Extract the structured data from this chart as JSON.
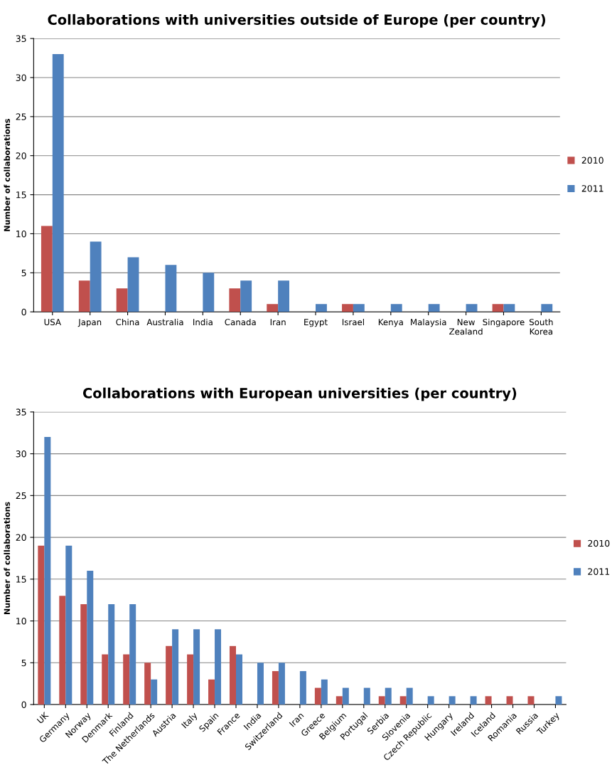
{
  "chart_data": [
    {
      "type": "bar",
      "title": "Collaborations with universities outside of Europe (per country)",
      "ylabel": "Number of collaborations",
      "categories": [
        "USA",
        "Japan",
        "China",
        "Australia",
        "India",
        "Canada",
        "Iran",
        "Egypt",
        "Israel",
        "Kenya",
        "Malaysia",
        "New\nZealand",
        "Singapore",
        "South\nKorea"
      ],
      "series": [
        {
          "name": "2010",
          "color": "#c0504d",
          "values": [
            11,
            4,
            3,
            0,
            0,
            3,
            1,
            0,
            1,
            0,
            0,
            0,
            1,
            0
          ]
        },
        {
          "name": "2011",
          "color": "#4f81bd",
          "values": [
            33,
            9,
            7,
            6,
            5,
            4,
            4,
            1,
            1,
            1,
            1,
            1,
            1,
            1
          ]
        }
      ],
      "ylim": [
        0,
        35
      ],
      "yticks": [
        0,
        5,
        10,
        15,
        20,
        25,
        30,
        35
      ],
      "grid": "y",
      "legend": "right"
    },
    {
      "type": "bar",
      "title": "Collaborations with European universities (per country)",
      "ylabel": "Number of collaborations",
      "categories": [
        "UK",
        "Germany",
        "Norway",
        "Denmark",
        "Finland",
        "The Netherlands",
        "Austria",
        "Italy",
        "Spain",
        "France",
        "India",
        "Switzerland",
        "Iran",
        "Greece",
        "Belgium",
        "Portugal",
        "Serbia",
        "Slovenia",
        "Czech Republic",
        "Hungary",
        "Ireland",
        "Iceland",
        "Romania",
        "Russia",
        "Turkey"
      ],
      "series": [
        {
          "name": "2010",
          "color": "#c0504d",
          "values": [
            19,
            13,
            12,
            6,
            6,
            5,
            7,
            6,
            3,
            7,
            0,
            4,
            0,
            2,
            1,
            0,
            1,
            1,
            0,
            0,
            0,
            1,
            1,
            1,
            0
          ]
        },
        {
          "name": "2011",
          "color": "#4f81bd",
          "values": [
            32,
            19,
            16,
            12,
            12,
            3,
            9,
            9,
            9,
            6,
            5,
            5,
            4,
            3,
            2,
            2,
            2,
            2,
            1,
            1,
            1,
            0,
            0,
            0,
            1
          ]
        }
      ],
      "ylim": [
        0,
        35
      ],
      "yticks": [
        0,
        5,
        10,
        15,
        20,
        25,
        30,
        35
      ],
      "grid": "y",
      "legend": "right"
    }
  ]
}
